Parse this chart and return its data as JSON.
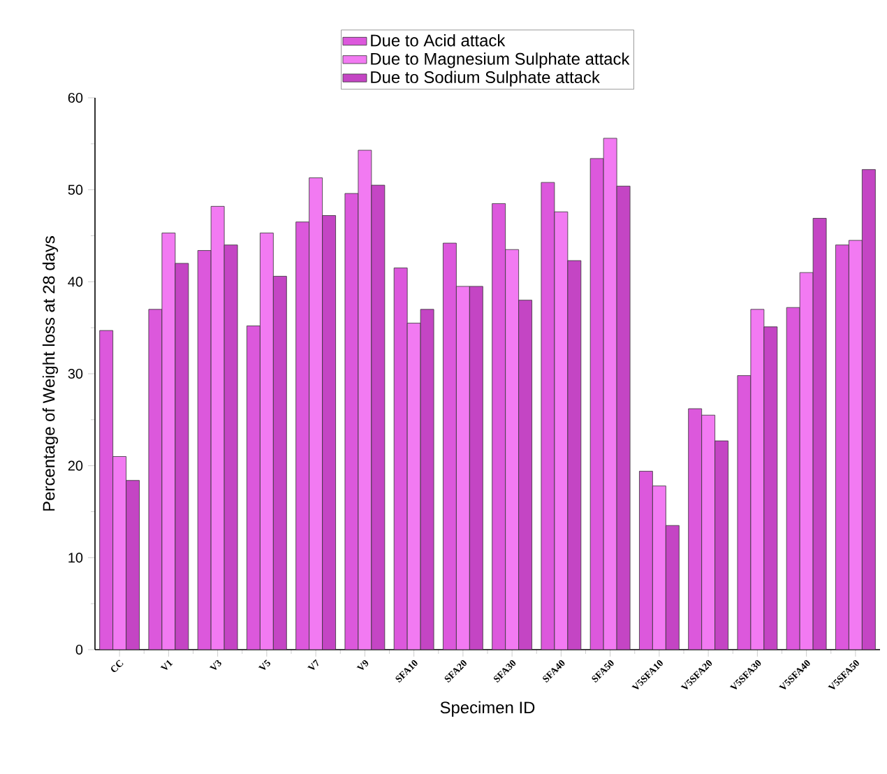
{
  "chart_data": {
    "type": "bar",
    "xlabel": "Specimen ID",
    "ylabel": "Percentage of Weight loss at 28 days",
    "categories": [
      "CC",
      "V1",
      "V3",
      "V5",
      "V7",
      "V9",
      "SFA10",
      "SFA20",
      "SFA30",
      "SFA40",
      "SFA50",
      "V5SFA10",
      "V5SFA20",
      "V5SFA30",
      "V5SFA40",
      "V5SFA50"
    ],
    "series": [
      {
        "name": "Due to Acid attack",
        "color": "#dc58dc",
        "values": [
          34.7,
          37,
          43.4,
          35.2,
          46.5,
          49.6,
          41.5,
          44.2,
          48.5,
          50.8,
          53.4,
          19.4,
          26.2,
          29.8,
          37.2,
          44
        ]
      },
      {
        "name": "Due to Magnesium Sulphate attack",
        "color": "#f27af2",
        "values": [
          21,
          45.3,
          48.2,
          45.3,
          51.3,
          54.3,
          35.5,
          39.5,
          43.5,
          47.6,
          55.6,
          17.8,
          25.5,
          37,
          41,
          44.5
        ]
      },
      {
        "name": "Due to Sodium Sulphate attack",
        "color": "#c445c4",
        "values": [
          18.4,
          42,
          44,
          40.6,
          47.2,
          50.5,
          37,
          39.5,
          38,
          42.3,
          50.4,
          13.5,
          22.7,
          35.1,
          46.9,
          52.2
        ]
      }
    ],
    "ylim": [
      0,
      60
    ],
    "yticks": [
      0,
      10,
      20,
      30,
      40,
      50,
      60
    ],
    "grid": false,
    "legend": "top"
  }
}
